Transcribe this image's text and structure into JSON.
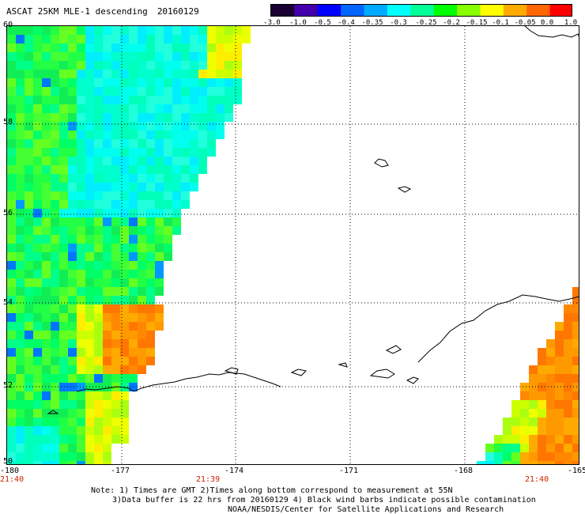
{
  "header": {
    "title": "ASCAT 25KM MLE-1 descending",
    "date": "20160129"
  },
  "colorbar": {
    "labels": [
      "-3.0",
      "-1.0",
      "-0.5",
      "-0.4",
      "-0.35",
      "-0.3",
      "-0.25",
      "-0.2",
      "-0.15",
      "-0.1",
      "-0.05",
      "0.0",
      "1.0"
    ],
    "colors": [
      "#1a0033",
      "#4400aa",
      "#0000ff",
      "#0066ff",
      "#00aaff",
      "#00ffff",
      "#00ff99",
      "#00ff00",
      "#88ff00",
      "#ffff00",
      "#ffaa00",
      "#ff6600",
      "#ff0000"
    ]
  },
  "axes": {
    "lon_labels": [
      "-180",
      "-177",
      "-174",
      "-171",
      "-168",
      "-165"
    ],
    "lat_labels": [
      "60",
      "58",
      "56",
      "54",
      "52",
      "50"
    ],
    "times": [
      "21:40",
      "21:39",
      "21:40"
    ]
  },
  "footer": {
    "line1": "Note: 1) Times are GMT 2)Times along bottom correspond to measurement at 55N",
    "line2": "3)Data buffer is 22 hrs from 20160129 4) Black wind barbs indicate possible contamination",
    "line3": "NOAA/NESDIS/Center for Satellite Applications and Research"
  }
}
